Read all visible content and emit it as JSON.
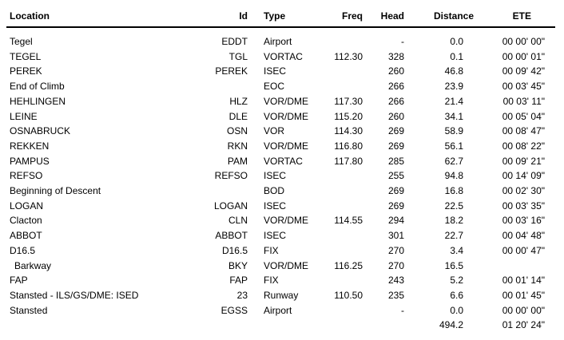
{
  "colors": {
    "background": "#ffffff",
    "text": "#000000",
    "header_rule": "#000000"
  },
  "table": {
    "columns": [
      {
        "key": "location",
        "label": "Location"
      },
      {
        "key": "id",
        "label": "Id"
      },
      {
        "key": "type",
        "label": "Type"
      },
      {
        "key": "freq",
        "label": "Freq"
      },
      {
        "key": "head",
        "label": "Head"
      },
      {
        "key": "distance",
        "label": "Distance"
      },
      {
        "key": "ete",
        "label": "ETE"
      }
    ],
    "rows": [
      {
        "location": "Tegel",
        "id": "EDDT",
        "type": "Airport",
        "freq": "",
        "head": "-",
        "distance": "0.0",
        "ete": "00 00' 00\""
      },
      {
        "location": "TEGEL",
        "id": "TGL",
        "type": "VORTAC",
        "freq": "112.30",
        "head": "328",
        "distance": "0.1",
        "ete": "00 00' 01\""
      },
      {
        "location": "PEREK",
        "id": "PEREK",
        "type": "ISEC",
        "freq": "",
        "head": "260",
        "distance": "46.8",
        "ete": "00 09' 42\""
      },
      {
        "location": "End of Climb",
        "id": "",
        "type": "EOC",
        "freq": "",
        "head": "266",
        "distance": "23.9",
        "ete": "00 03' 45\""
      },
      {
        "location": "HEHLINGEN",
        "id": "HLZ",
        "type": "VOR/DME",
        "freq": "117.30",
        "head": "266",
        "distance": "21.4",
        "ete": "00 03' 11\""
      },
      {
        "location": "LEINE",
        "id": "DLE",
        "type": "VOR/DME",
        "freq": "115.20",
        "head": "260",
        "distance": "34.1",
        "ete": "00 05' 04\""
      },
      {
        "location": "OSNABRUCK",
        "id": "OSN",
        "type": "VOR",
        "freq": "114.30",
        "head": "269",
        "distance": "58.9",
        "ete": "00 08' 47\""
      },
      {
        "location": "REKKEN",
        "id": "RKN",
        "type": "VOR/DME",
        "freq": "116.80",
        "head": "269",
        "distance": "56.1",
        "ete": "00 08' 22\""
      },
      {
        "location": "PAMPUS",
        "id": "PAM",
        "type": "VORTAC",
        "freq": "117.80",
        "head": "285",
        "distance": "62.7",
        "ete": "00 09' 21\""
      },
      {
        "location": "REFSO",
        "id": "REFSO",
        "type": "ISEC",
        "freq": "",
        "head": "255",
        "distance": "94.8",
        "ete": "00 14' 09\""
      },
      {
        "location": "Beginning of Descent",
        "id": "",
        "type": "BOD",
        "freq": "",
        "head": "269",
        "distance": "16.8",
        "ete": "00 02' 30\""
      },
      {
        "location": "LOGAN",
        "id": "LOGAN",
        "type": "ISEC",
        "freq": "",
        "head": "269",
        "distance": "22.5",
        "ete": "00 03' 35\""
      },
      {
        "location": "Clacton",
        "id": "CLN",
        "type": "VOR/DME",
        "freq": "114.55",
        "head": "294",
        "distance": "18.2",
        "ete": "00 03' 16\""
      },
      {
        "location": "ABBOT",
        "id": "ABBOT",
        "type": "ISEC",
        "freq": "",
        "head": "301",
        "distance": "22.7",
        "ete": "00 04' 48\""
      },
      {
        "location": "D16.5",
        "id": "D16.5",
        "type": "FIX",
        "freq": "",
        "head": "270",
        "distance": "3.4",
        "ete": "00 00' 47\""
      },
      {
        "location": "Barkway",
        "indent": true,
        "id": "BKY",
        "type": "VOR/DME",
        "freq": "116.25",
        "head": "270",
        "distance": "16.5",
        "ete": ""
      },
      {
        "location": "FAP",
        "id": "FAP",
        "type": "FIX",
        "freq": "",
        "head": "243",
        "distance": "5.2",
        "ete": "00 01' 14\""
      },
      {
        "location": "Stansted - ILS/GS/DME: ISED",
        "id": "23",
        "type": "Runway",
        "freq": "110.50",
        "head": "235",
        "distance": "6.6",
        "ete": "00 01' 45\""
      },
      {
        "location": "Stansted",
        "id": "EGSS",
        "type": "Airport",
        "freq": "",
        "head": "-",
        "distance": "0.0",
        "ete": "00 00' 00\""
      }
    ],
    "total": {
      "distance": "494.2",
      "ete": "01 20' 24\""
    }
  }
}
